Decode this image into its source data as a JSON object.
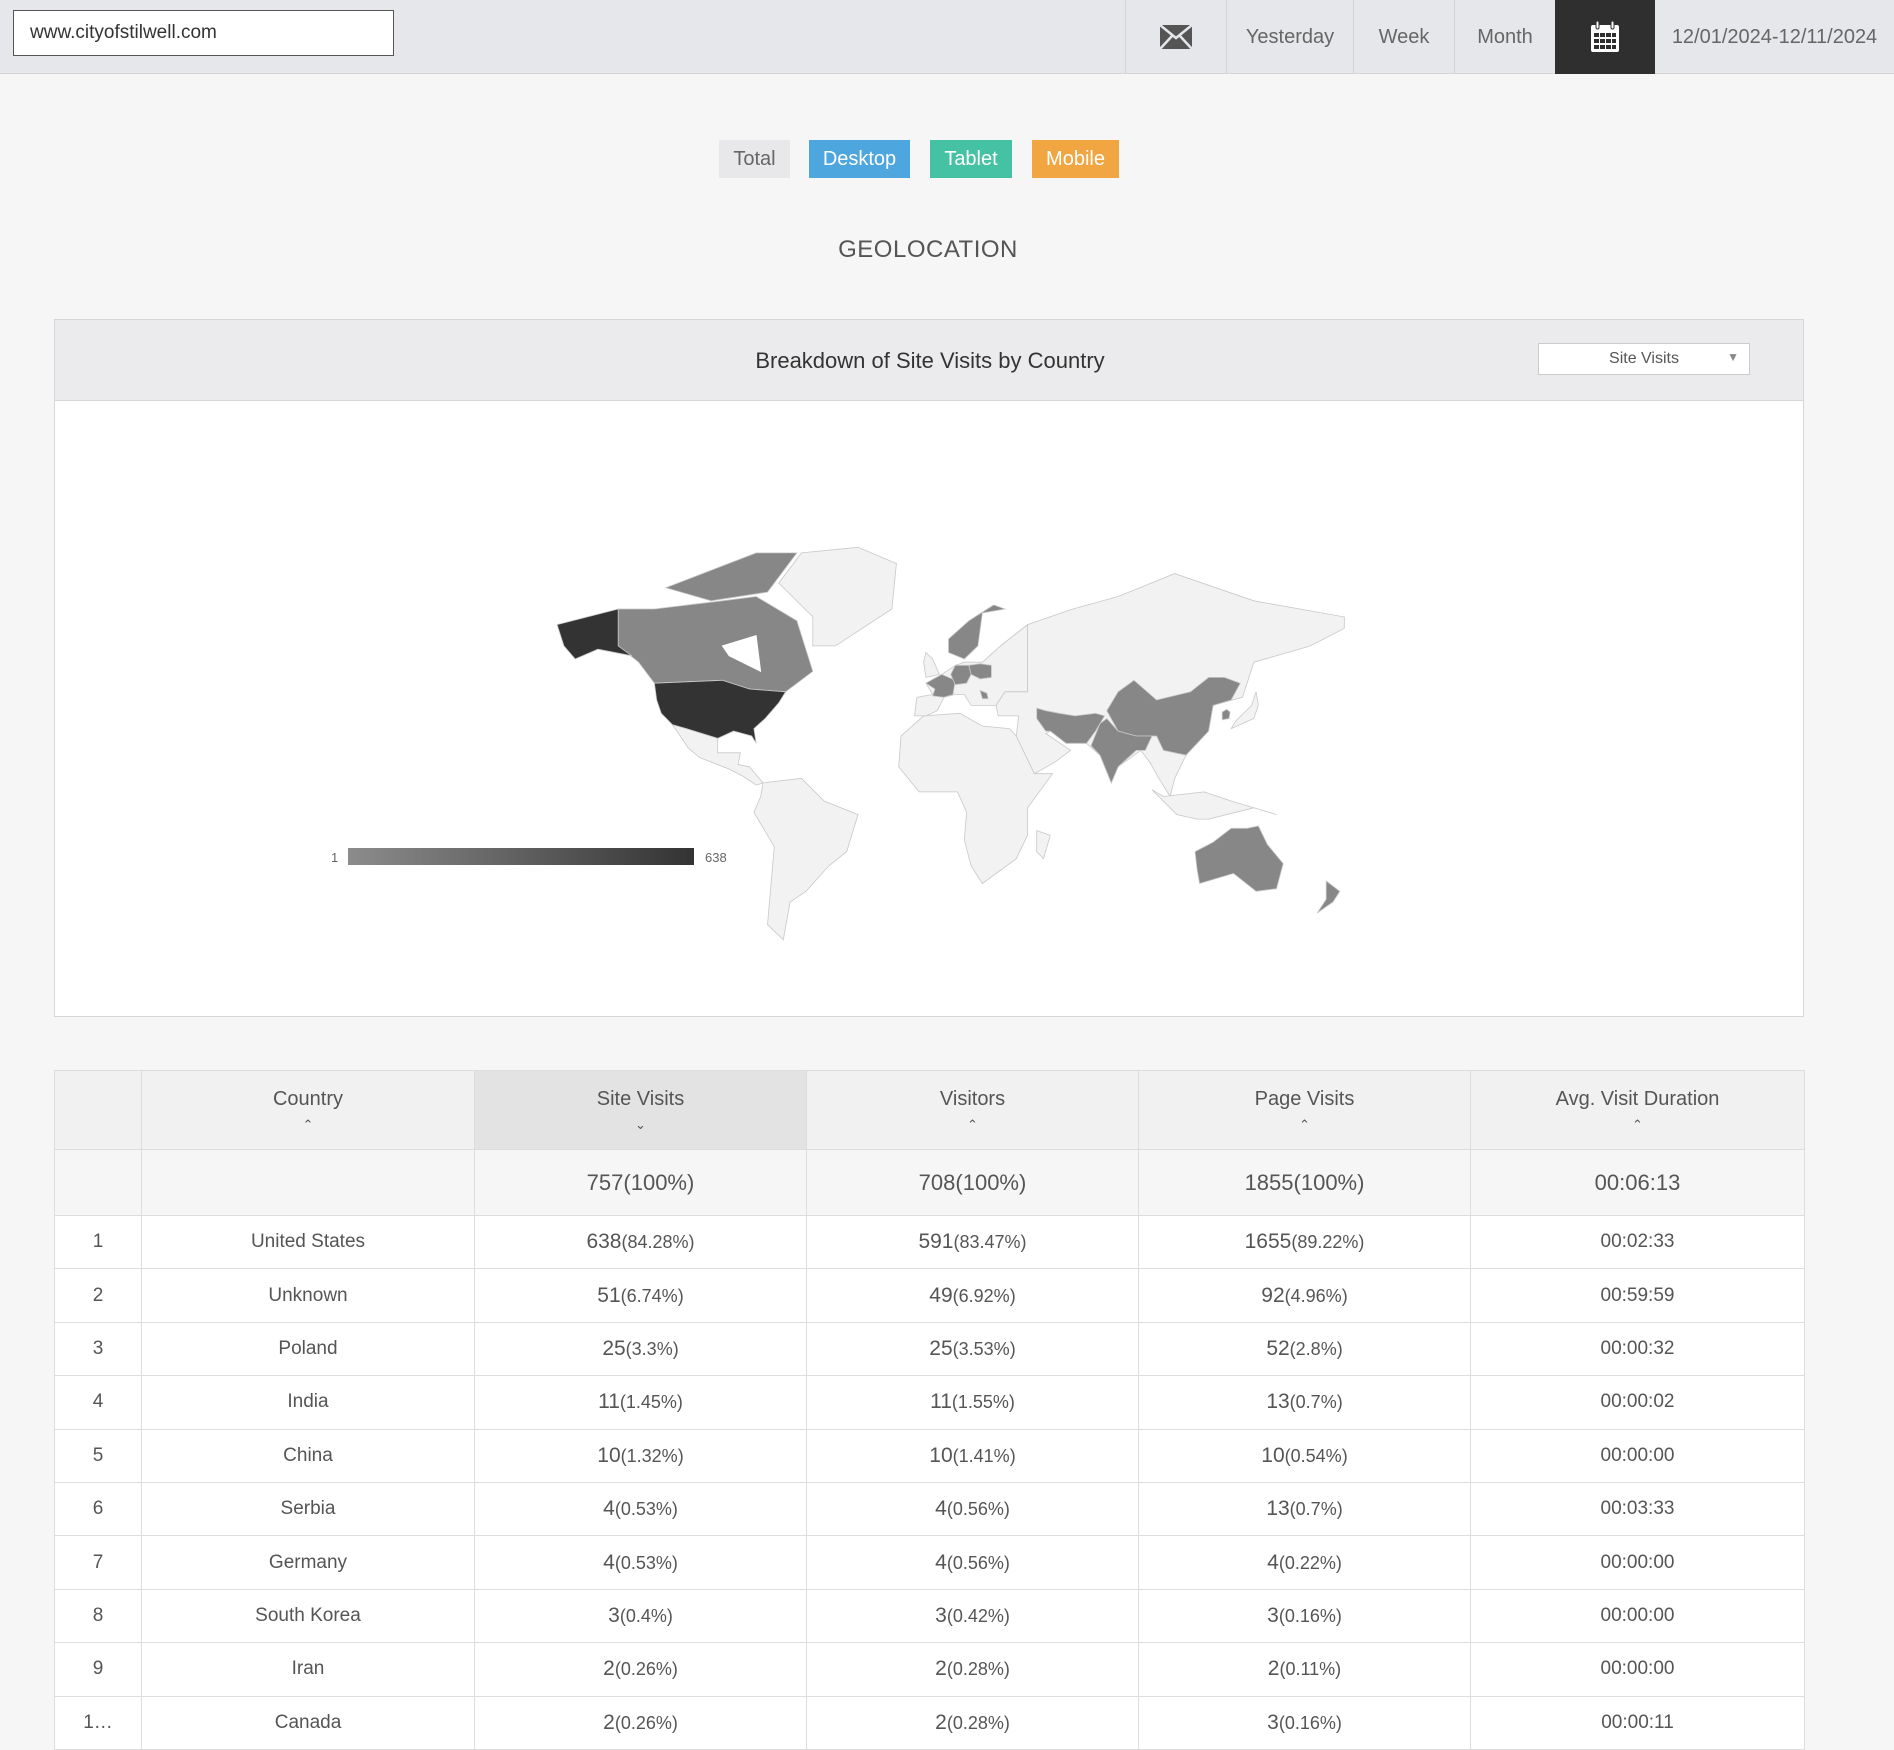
{
  "topbar": {
    "url": "www.cityofstilwell.com",
    "mail_icon": "envelope-icon",
    "yesterday": "Yesterday",
    "week": "Week",
    "month": "Month",
    "calendar_icon": "calendar-icon",
    "date_range": "12/01/2024-12/11/2024"
  },
  "filters": [
    {
      "label": "Total",
      "color": "#e8e8ea"
    },
    {
      "label": "Desktop",
      "color": "#4da6de"
    },
    {
      "label": "Tablet",
      "color": "#45c2a4"
    },
    {
      "label": "Mobile",
      "color": "#f2a641"
    }
  ],
  "section_title": "GEOLOCATION",
  "panel": {
    "title": "Breakdown of Site Visits by Country",
    "metric_select": "Site Visits",
    "legend": {
      "min": "1",
      "max": "638",
      "min_color": "#8c8c8c",
      "max_color": "#333333"
    }
  },
  "table": {
    "headers": [
      "",
      "Country",
      "Site Visits",
      "Visitors",
      "Page Visits",
      "Avg. Visit Duration"
    ],
    "sort": [
      "",
      "asc",
      "desc",
      "asc",
      "asc",
      "asc"
    ],
    "totals": {
      "site_visits": "757",
      "site_visits_pct": "(100%)",
      "visitors": "708",
      "visitors_pct": "(100%)",
      "page_visits": "1855",
      "page_visits_pct": "(100%)",
      "duration": "00:06:13"
    },
    "rows": [
      {
        "rank": "1",
        "country": "United States",
        "sv": "638",
        "svp": "(84.28%)",
        "v": "591",
        "vp": "(83.47%)",
        "pv": "1655",
        "pvp": "(89.22%)",
        "d": "00:02:33"
      },
      {
        "rank": "2",
        "country": "Unknown",
        "sv": "51",
        "svp": "(6.74%)",
        "v": "49",
        "vp": "(6.92%)",
        "pv": "92",
        "pvp": "(4.96%)",
        "d": "00:59:59"
      },
      {
        "rank": "3",
        "country": "Poland",
        "sv": "25",
        "svp": "(3.3%)",
        "v": "25",
        "vp": "(3.53%)",
        "pv": "52",
        "pvp": "(2.8%)",
        "d": "00:00:32"
      },
      {
        "rank": "4",
        "country": "India",
        "sv": "11",
        "svp": "(1.45%)",
        "v": "11",
        "vp": "(1.55%)",
        "pv": "13",
        "pvp": "(0.7%)",
        "d": "00:00:02"
      },
      {
        "rank": "5",
        "country": "China",
        "sv": "10",
        "svp": "(1.32%)",
        "v": "10",
        "vp": "(1.41%)",
        "pv": "10",
        "pvp": "(0.54%)",
        "d": "00:00:00"
      },
      {
        "rank": "6",
        "country": "Serbia",
        "sv": "4",
        "svp": "(0.53%)",
        "v": "4",
        "vp": "(0.56%)",
        "pv": "13",
        "pvp": "(0.7%)",
        "d": "00:03:33"
      },
      {
        "rank": "7",
        "country": "Germany",
        "sv": "4",
        "svp": "(0.53%)",
        "v": "4",
        "vp": "(0.56%)",
        "pv": "4",
        "pvp": "(0.22%)",
        "d": "00:00:00"
      },
      {
        "rank": "8",
        "country": "South Korea",
        "sv": "3",
        "svp": "(0.4%)",
        "v": "3",
        "vp": "(0.42%)",
        "pv": "3",
        "pvp": "(0.16%)",
        "d": "00:00:00"
      },
      {
        "rank": "9",
        "country": "Iran",
        "sv": "2",
        "svp": "(0.26%)",
        "v": "2",
        "vp": "(0.28%)",
        "pv": "2",
        "pvp": "(0.11%)",
        "d": "00:00:00"
      },
      {
        "rank": "1…",
        "country": "Canada",
        "sv": "2",
        "svp": "(0.26%)",
        "v": "2",
        "vp": "(0.28%)",
        "pv": "3",
        "pvp": "(0.16%)",
        "d": "00:00:11"
      }
    ]
  }
}
